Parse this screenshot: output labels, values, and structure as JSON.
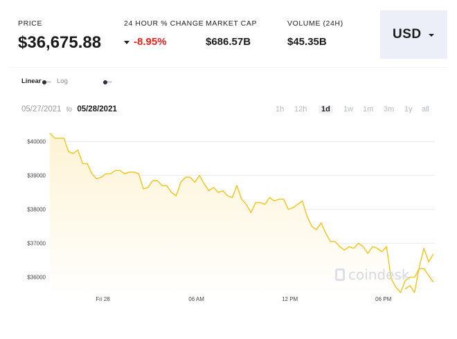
{
  "stats": {
    "price_label": "PRICE",
    "price_value": "$36,675.88",
    "change_label": "24 HOUR % CHANGE",
    "change_value": "-8.95%",
    "change_color": "#e8231d",
    "mcap_label": "MARKET CAP",
    "mcap_value": "$686.57B",
    "volume_label": "VOLUME (24H)",
    "volume_value": "$45.35B"
  },
  "currency": {
    "selected": "USD"
  },
  "scale": {
    "linear_label": "Linear",
    "log_label": "Log"
  },
  "dates": {
    "from": "05/27/2021",
    "to_word": "to",
    "to": "05/28/2021"
  },
  "ranges": [
    {
      "label": "1h",
      "active": false
    },
    {
      "label": "12h",
      "active": false
    },
    {
      "label": "1d",
      "active": true
    },
    {
      "label": "1w",
      "active": false
    },
    {
      "label": "1m",
      "active": false
    },
    {
      "label": "3m",
      "active": false
    },
    {
      "label": "1y",
      "active": false
    },
    {
      "label": "all",
      "active": false
    }
  ],
  "watermark": "coindesk",
  "chart_data": {
    "type": "area",
    "title": "",
    "xlabel": "",
    "ylabel": "",
    "line_color": "#f0c419",
    "fill_color": "#fdf3d4",
    "grid": true,
    "yticks": [
      36000,
      37000,
      38000,
      39000,
      40000
    ],
    "ytick_labels": [
      "$36000",
      "$37000",
      "$38000",
      "$39000",
      "$40000"
    ],
    "xtick_labels": [
      "Fri 28",
      "06 AM",
      "12 PM",
      "06 PM"
    ],
    "ylim": [
      35400,
      40400
    ],
    "x_hours_range": [
      -3.4,
      21.3
    ],
    "xtick_hours": [
      0,
      6,
      12,
      18
    ],
    "series": [
      {
        "x_hours": [
          -3.4,
          -3.1,
          -2.8,
          -2.5,
          -2.2,
          -1.9,
          -1.6,
          -1.3,
          -1.0,
          -0.7,
          -0.4,
          -0.1,
          0.2,
          0.5,
          0.8,
          1.1,
          1.4,
          1.7,
          2.0,
          2.3,
          2.6,
          2.9,
          3.2,
          3.5,
          3.8,
          4.1,
          4.4,
          4.7,
          5.0,
          5.3,
          5.6,
          5.9,
          6.2,
          6.5,
          6.8,
          7.1,
          7.4,
          7.7,
          8.0,
          8.3,
          8.6,
          8.9,
          9.2,
          9.5,
          9.8,
          10.1,
          10.4,
          10.7,
          11.0,
          11.3,
          11.6,
          11.9,
          12.2,
          12.5,
          12.8,
          13.1,
          13.4,
          13.7,
          14.0,
          14.3,
          14.6,
          14.9,
          15.2,
          15.5,
          15.8,
          16.1,
          16.4,
          16.7,
          17.0,
          17.3,
          17.6,
          17.9,
          18.2,
          18.5,
          18.8,
          19.1,
          19.4,
          19.7,
          20.0,
          20.3,
          20.6,
          20.9,
          21.2
        ],
        "values": [
          40250,
          40100,
          40100,
          40100,
          39700,
          39650,
          39750,
          39350,
          39350,
          39050,
          38900,
          38950,
          39050,
          39050,
          39150,
          39150,
          39050,
          39100,
          39100,
          39050,
          38600,
          38650,
          38850,
          38850,
          38700,
          38700,
          38500,
          38400,
          38800,
          38950,
          38950,
          38800,
          39000,
          38750,
          38550,
          38650,
          38500,
          38550,
          38400,
          38350,
          38700,
          38300,
          38150,
          37900,
          38200,
          38200,
          38150,
          38350,
          38250,
          38300,
          38300,
          38000,
          38050,
          38150,
          38250,
          37800,
          37500,
          37400,
          37600,
          37300,
          37050,
          37050,
          36900,
          36800,
          36900,
          36850,
          37000,
          36900,
          36700,
          36900,
          36850,
          36750,
          36900,
          35950,
          35700,
          35550,
          35900,
          36000,
          36000,
          36250,
          36250,
          36050,
          35850
        ]
      }
    ],
    "tail": {
      "x_hours": [
        19.4,
        19.7,
        20.0,
        20.3,
        20.6,
        20.9,
        21.2
      ],
      "values": [
        35650,
        35750,
        35550,
        36300,
        36850,
        36450,
        36680
      ]
    }
  }
}
